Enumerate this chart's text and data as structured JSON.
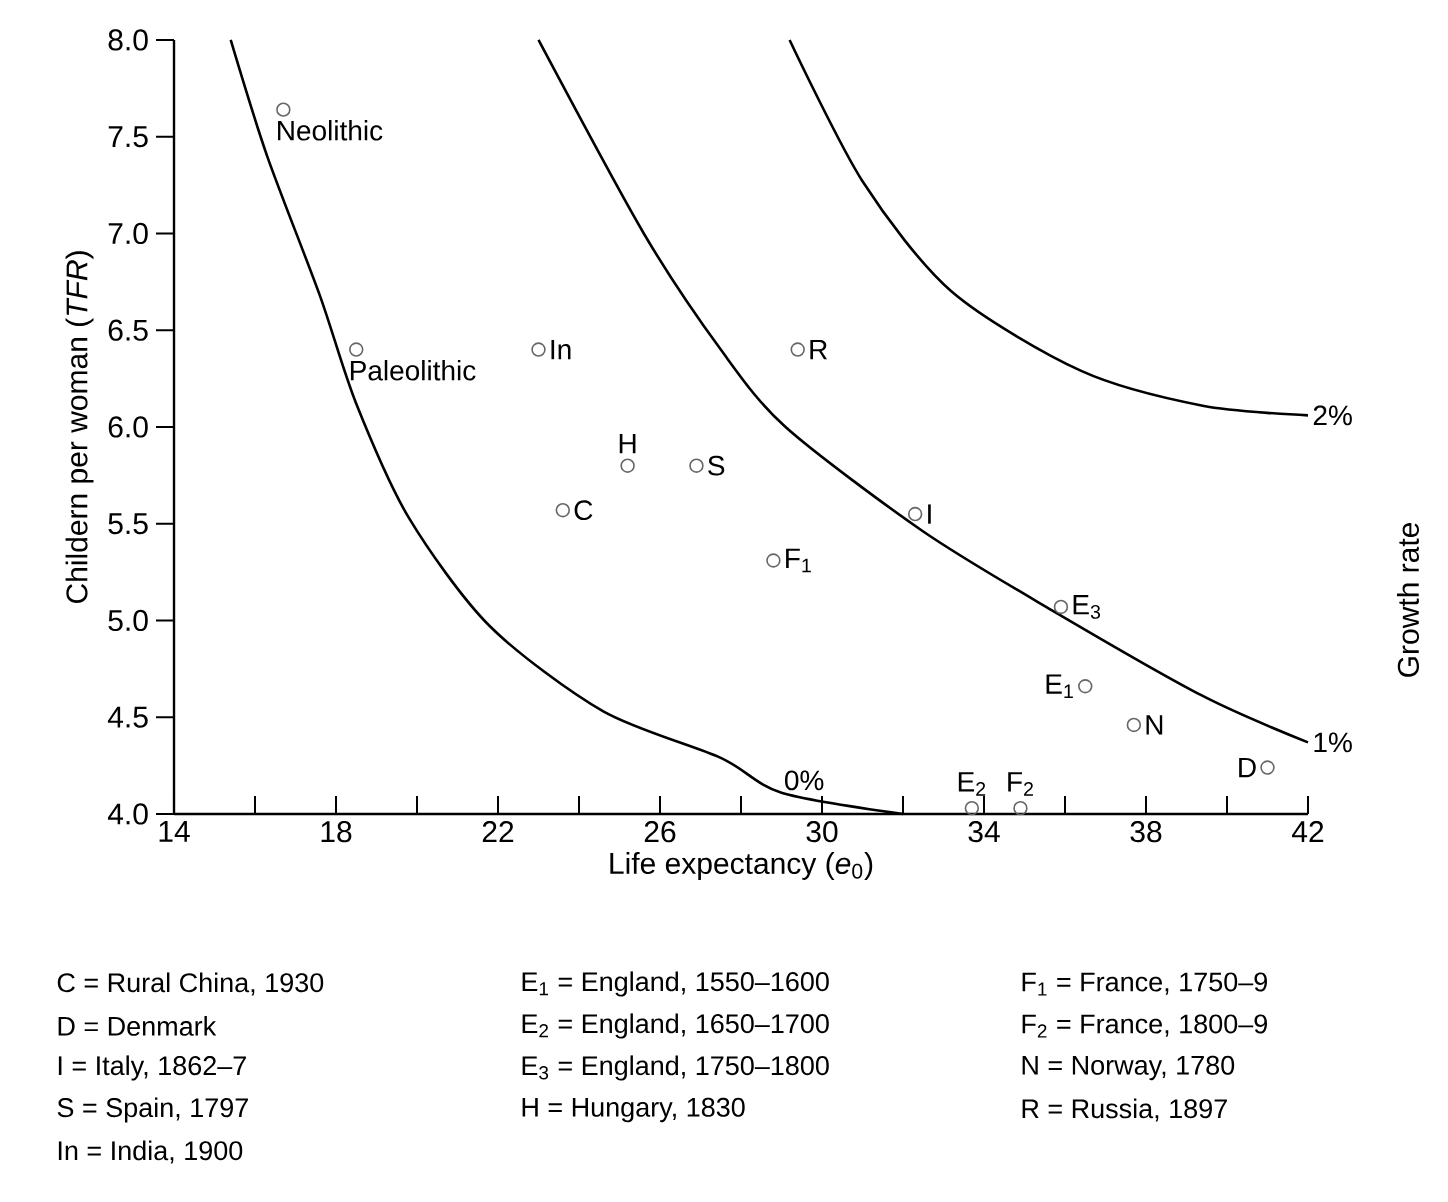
{
  "chart_data": {
    "type": "scatter",
    "xlabel": "Life expectancy (*e*$_{0}$)",
    "ylabel": "Childern per woman (*TFR*)",
    "xlim": [
      14,
      42
    ],
    "ylim": [
      4.0,
      8.0
    ],
    "xticks": [
      14,
      {
        "value": 16,
        "label": null
      },
      18,
      {
        "value": 20,
        "label": null
      },
      22,
      {
        "value": 24,
        "label": null
      },
      26,
      {
        "value": 28,
        "label": null
      },
      30,
      {
        "value": 32,
        "label": null
      },
      34,
      {
        "value": 36,
        "label": null
      },
      38,
      {
        "value": 40,
        "label": null
      },
      42
    ],
    "yticks": [
      {
        "value": 4.0,
        "label": "4.0"
      },
      {
        "value": 4.5,
        "label": "4.5"
      },
      {
        "value": 5.0,
        "label": "5.0"
      },
      {
        "value": 5.5,
        "label": "5.5"
      },
      {
        "value": 6.0,
        "label": "6.0"
      },
      {
        "value": 6.5,
        "label": "6.5"
      },
      {
        "value": 7.0,
        "label": "7.0"
      },
      {
        "value": 7.5,
        "label": "7.5"
      },
      {
        "value": 8.0,
        "label": "8.0"
      }
    ],
    "marker": "circle",
    "series": [
      {
        "type": "line",
        "name": "0%",
        "color": "#000000",
        "marker": "none",
        "x": [
          15.4,
          16.3,
          17.6,
          18.5,
          19.8,
          21.8,
          24.6,
          27.5,
          29.0,
          32.0
        ],
        "values": [
          8.0,
          7.4,
          6.68,
          6.12,
          5.53,
          4.97,
          4.53,
          4.29,
          4.11,
          4.0
        ]
      },
      {
        "type": "line",
        "name": "1%",
        "color": "#000000",
        "marker": "none",
        "x": [
          23.0,
          25.6,
          27.5,
          29.1,
          32.5,
          35.7,
          39.4,
          42.0
        ],
        "values": [
          8.0,
          7.0,
          6.4,
          6.0,
          5.46,
          5.05,
          4.61,
          4.37
        ]
      },
      {
        "type": "line",
        "name": "2%",
        "color": "#000000",
        "marker": "none",
        "x": [
          29.2,
          31.0,
          33.2,
          36.4,
          39.4,
          42.0
        ],
        "values": [
          8.0,
          7.27,
          6.7,
          6.29,
          6.11,
          6.06
        ]
      },
      {
        "name": "Neolithic",
        "color": "#666666",
        "x": [
          16.7
        ],
        "values": [
          7.64
        ]
      },
      {
        "name": "Paleolithic",
        "color": "#666666",
        "x": [
          18.5
        ],
        "values": [
          6.4
        ]
      },
      {
        "name": "In",
        "color": "#666666",
        "x": [
          23.0
        ],
        "values": [
          6.4
        ]
      },
      {
        "name": "H",
        "color": "#666666",
        "x": [
          25.2
        ],
        "values": [
          5.8
        ]
      },
      {
        "name": "S",
        "color": "#666666",
        "x": [
          26.9
        ],
        "values": [
          5.8
        ]
      },
      {
        "name": "C",
        "color": "#666666",
        "x": [
          23.6
        ],
        "values": [
          5.57
        ]
      },
      {
        "name": "R",
        "color": "#666666",
        "x": [
          29.4
        ],
        "values": [
          6.4
        ]
      },
      {
        "name": "I",
        "color": "#666666",
        "x": [
          32.3
        ],
        "values": [
          5.55
        ]
      },
      {
        "name": "F$_{1}$",
        "color": "#666666",
        "x": [
          28.8
        ],
        "values": [
          5.31
        ]
      },
      {
        "name": "E$_{3}$",
        "color": "#666666",
        "x": [
          35.9
        ],
        "values": [
          5.07
        ]
      },
      {
        "name": "E$_{1}$",
        "color": "#666666",
        "x": [
          36.5
        ],
        "values": [
          4.66
        ]
      },
      {
        "name": "N",
        "color": "#666666",
        "x": [
          37.7
        ],
        "values": [
          4.46
        ]
      },
      {
        "name": "D",
        "color": "#666666",
        "x": [
          41.0
        ],
        "values": [
          4.24
        ]
      },
      {
        "name": "E$_{2}$",
        "color": "#666666",
        "x": [
          33.7
        ],
        "values": [
          4.03
        ]
      },
      {
        "name": "F$_{2}$",
        "color": "#666666",
        "x": [
          34.9
        ],
        "values": [
          4.03
        ]
      }
    ],
    "annotations": [
      "Growth rate",
      "C = Rural China, 1930",
      "D = Denmark",
      "I = Italy, 1862–7",
      "S = Spain, 1797",
      "In = India, 1900",
      "E$_{1}$ = England, 1550–1600",
      "E$_{2}$ = England, 1650–1700",
      "E$_{3}$ = England, 1750–1800",
      "H = Hungary, 1830",
      "F$_{1}$ = France, 1750–9",
      "F$_{2}$ = France, 1800–9",
      "N = Norway, 1780",
      "R = Russia, 1897"
    ]
  }
}
